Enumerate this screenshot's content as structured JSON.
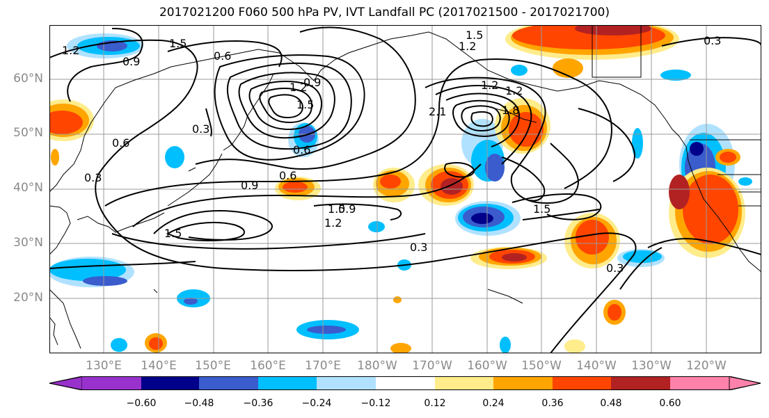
{
  "title": "2017021200 F060 500 hPa PV, IVT Landfall PC (2017021500 - 2017021700)",
  "map": {
    "lat_labels": [
      "60°N",
      "50°N",
      "40°N",
      "30°N",
      "20°N"
    ],
    "lon_labels": [
      "130°E",
      "140°E",
      "150°E",
      "160°E",
      "170°E",
      "180°W",
      "170°W",
      "160°W",
      "150°W",
      "140°W",
      "130°W",
      "120°W"
    ]
  },
  "contour_labels": [
    "1.2",
    "0.9",
    "1.5",
    "0.6",
    "1.5",
    "1.2",
    "0.9",
    "0.3",
    "0.6",
    "0.3",
    "1.2",
    "0.9",
    "0.6",
    "1.5",
    "1.2",
    "2.1",
    "1.8",
    "1.2",
    "0.3",
    "0.9",
    "0.6",
    "1.5",
    "1.2",
    "1.5",
    "0.3",
    "1.5",
    "0.3"
  ],
  "colorbar": {
    "ticks": [
      "−0.60",
      "−0.48",
      "−0.36",
      "−0.24",
      "−0.12",
      "0.12",
      "0.24",
      "0.36",
      "0.48",
      "0.60"
    ],
    "colors": [
      "#9932cc",
      "#00008b",
      "#3a5ccc",
      "#00bfff",
      "#b0e2ff",
      "#ffffff",
      "#ffec8b",
      "#ffa500",
      "#ff4500",
      "#b22222",
      "#ff82ab"
    ]
  }
}
